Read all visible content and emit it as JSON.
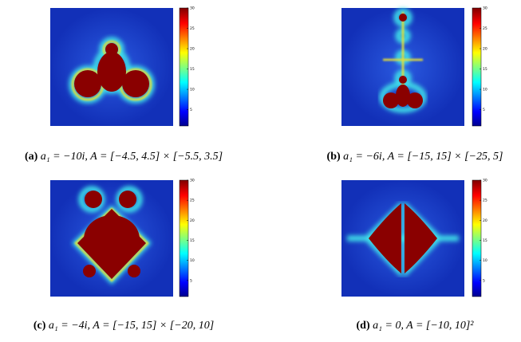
{
  "colorbar": {
    "lim": [
      1,
      30
    ],
    "ticks": [
      5,
      10,
      15,
      20,
      25,
      30
    ]
  },
  "panels": [
    {
      "label": "(a)",
      "caption": "a₁ = −10i, A = [−4.5, 4.5] × [−5.5, 3.5]"
    },
    {
      "label": "(b)",
      "caption": "a₁ = −6i, A = [−15, 15] × [−25, 5]"
    },
    {
      "label": "(c)",
      "caption": "a₁ = −4i, A = [−15, 15] × [−20, 10]"
    },
    {
      "label": "(d)",
      "caption": "a₁ = 0, A = [−10, 10]²"
    }
  ]
}
